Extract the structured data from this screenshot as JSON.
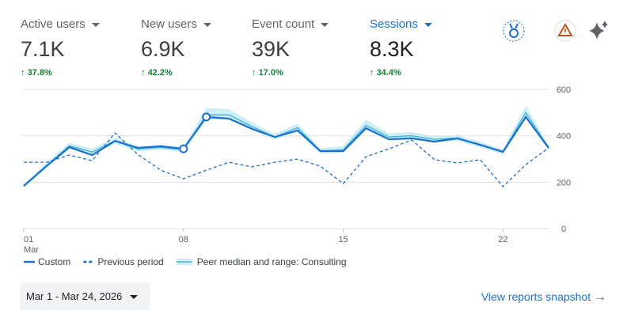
{
  "metrics": [
    {
      "label": "Active users",
      "value": "7.1K",
      "change": "37.8%"
    },
    {
      "label": "New users",
      "value": "6.9K",
      "change": "42.2%"
    },
    {
      "label": "Event count",
      "value": "39K",
      "change": "17.0%"
    },
    {
      "label": "Sessions",
      "value": "8.3K",
      "change": "34.4%"
    }
  ],
  "chart_data": {
    "type": "line",
    "categories": [
      "01",
      null,
      null,
      null,
      null,
      null,
      null,
      "08",
      null,
      null,
      null,
      null,
      null,
      null,
      "15",
      null,
      null,
      null,
      null,
      null,
      null,
      "22",
      null,
      null
    ],
    "x_sublabel": "Mar",
    "ylim": [
      0,
      600
    ],
    "yticks": [
      0,
      200,
      400,
      600
    ],
    "grid": true,
    "series": [
      {
        "name": "Custom",
        "color": "#1a6fd1",
        "style": "solid",
        "highlight": [
          7,
          8
        ],
        "values": [
          184,
          270,
          351,
          317,
          378,
          348,
          355,
          344,
          481,
          474,
          430,
          395,
          423,
          334,
          334,
          433,
          385,
          389,
          375,
          389,
          361,
          331,
          481,
          348
        ]
      },
      {
        "name": "Previous period",
        "color": "#1a6fd1",
        "style": "dashed",
        "values": [
          286,
          286,
          317,
          293,
          412,
          320,
          252,
          215,
          252,
          286,
          266,
          286,
          300,
          269,
          194,
          310,
          344,
          382,
          297,
          283,
          297,
          181,
          276,
          348
        ]
      },
      {
        "name": "Peer median and range: Consulting",
        "color": "#4fb8d4",
        "style": "band",
        "band_color": "#cdeef6",
        "values": [
          184,
          272,
          357,
          330,
          378,
          343,
          350,
          340,
          490,
          490,
          440,
          395,
          435,
          334,
          340,
          445,
          395,
          400,
          385,
          390,
          362,
          331,
          500,
          348
        ],
        "lower": [
          176,
          262,
          345,
          318,
          366,
          332,
          340,
          330,
          470,
          470,
          425,
          383,
          420,
          322,
          328,
          425,
          382,
          387,
          372,
          378,
          350,
          320,
          480,
          338
        ],
        "upper": [
          192,
          284,
          370,
          345,
          392,
          355,
          362,
          352,
          520,
          515,
          458,
          408,
          452,
          346,
          356,
          470,
          410,
          416,
          398,
          403,
          375,
          343,
          530,
          358
        ]
      }
    ]
  },
  "date_range": "Mar 1 - Mar 24, 2026",
  "link": "View reports snapshot"
}
